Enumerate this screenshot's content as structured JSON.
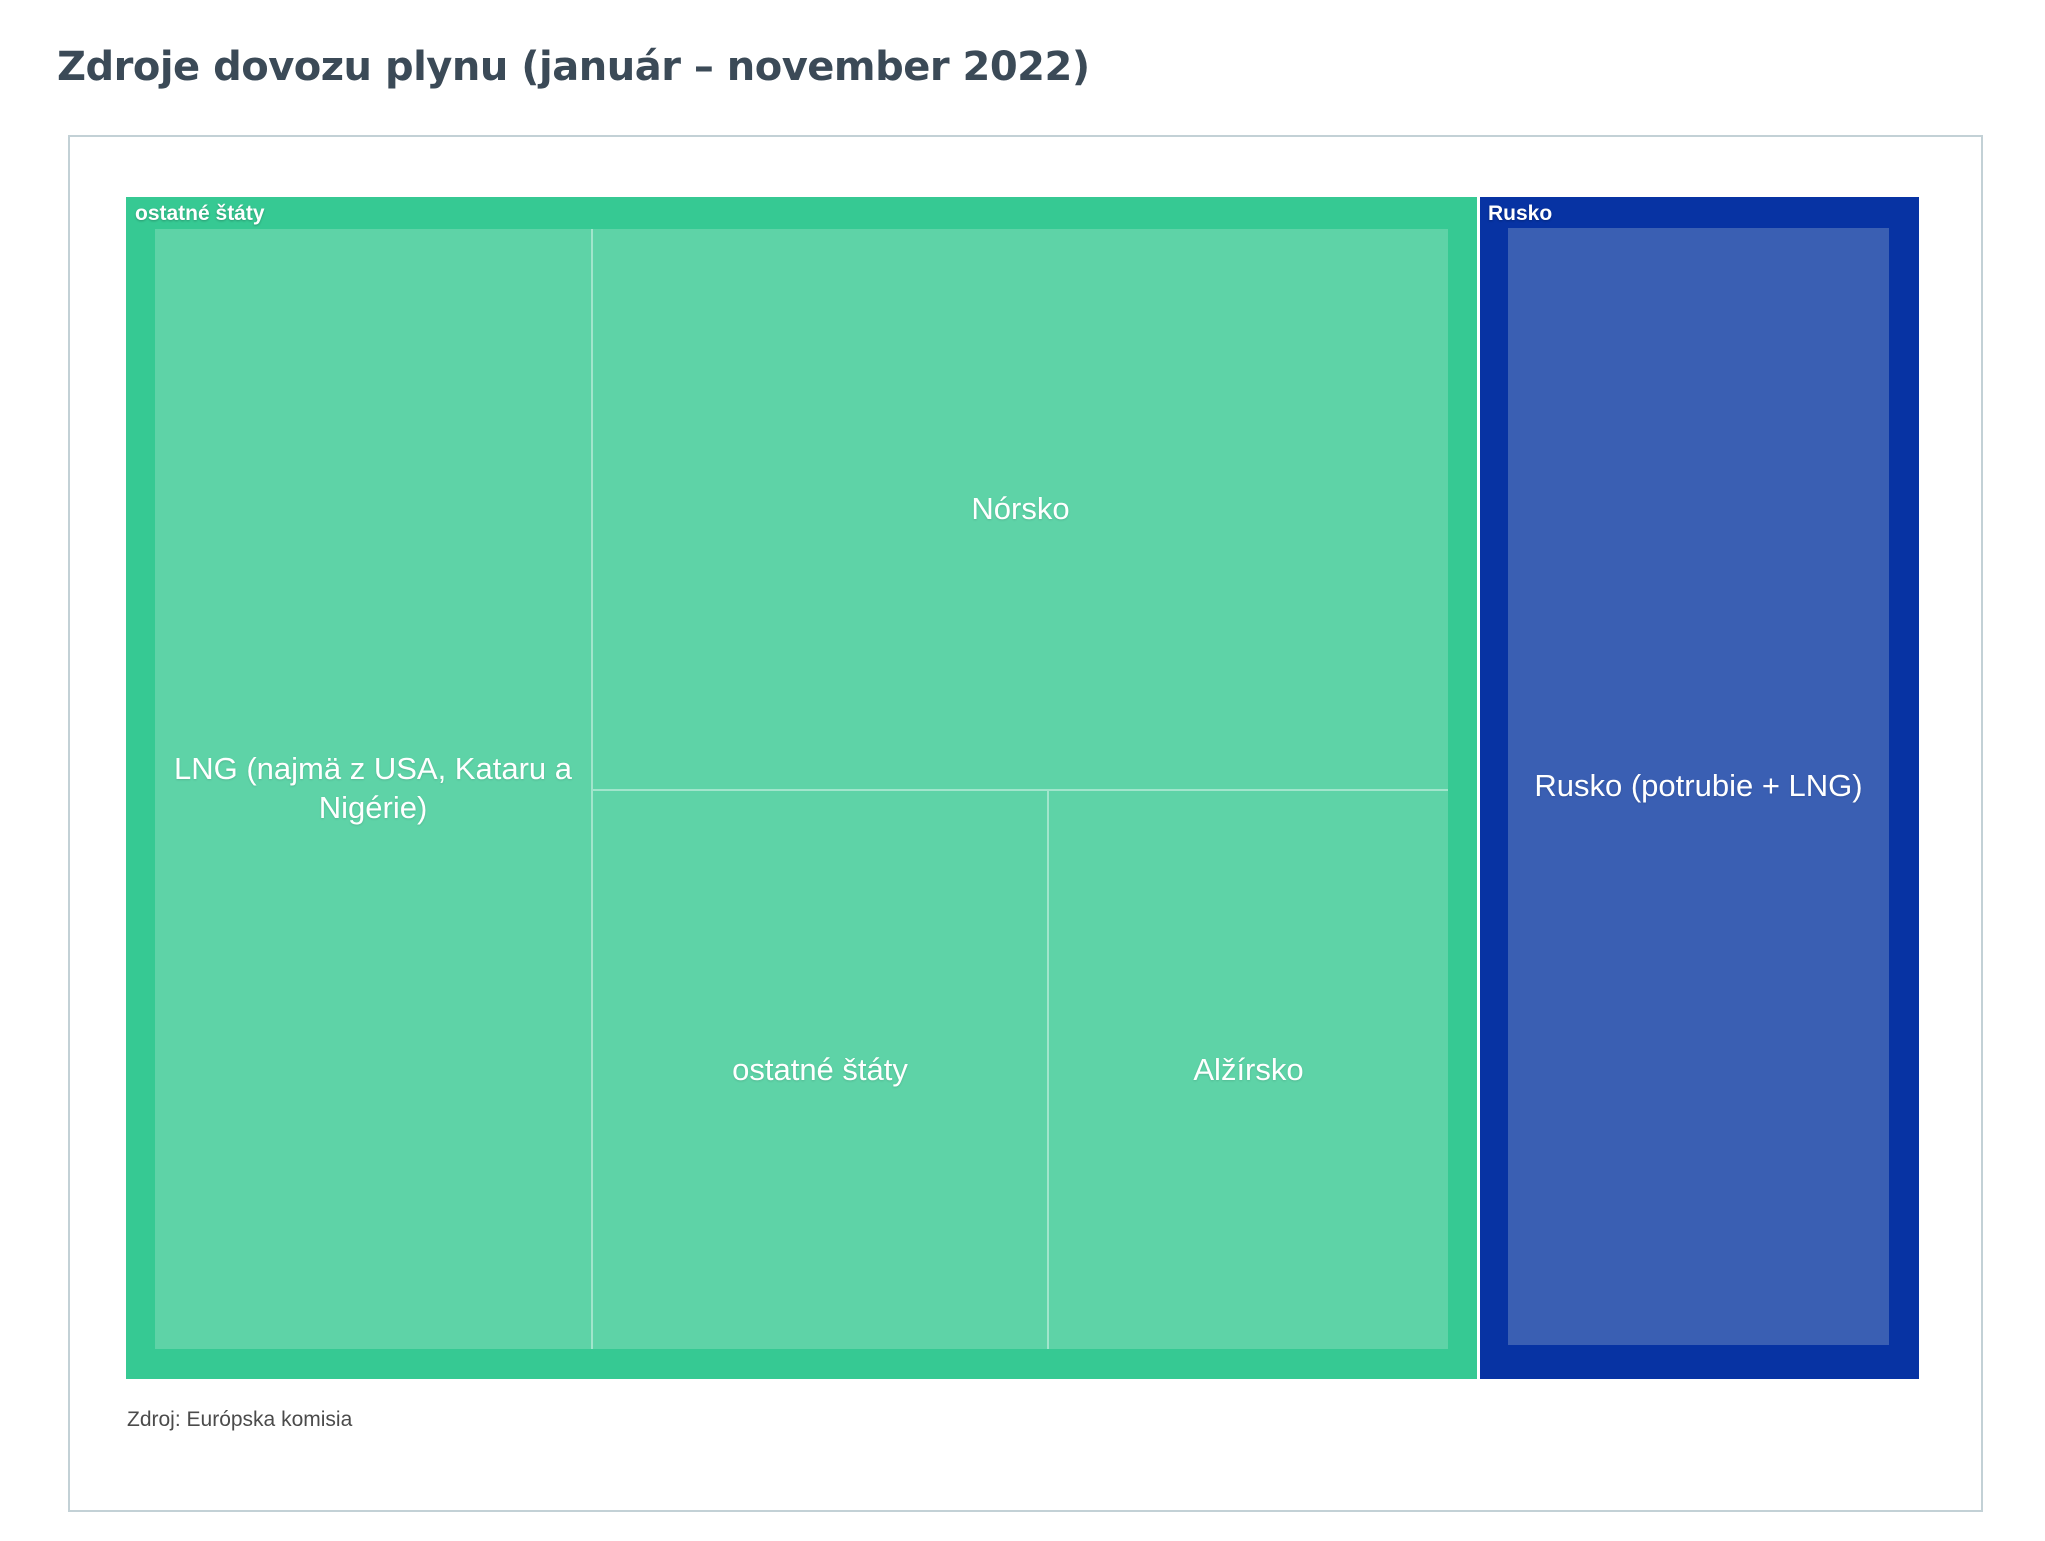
{
  "page": {
    "title": "Zdroje dovozu plynu (január – november 2022)",
    "source_note": "Zdroj: Európska komisia"
  },
  "chart_data": {
    "type": "treemap",
    "title": "Zdroje dovozu plynu (január – november 2022)",
    "source_note": "Zdroj: Európska komisia",
    "legend_position": "none",
    "unit": "percent_of_total_area_estimated",
    "groups": [
      {
        "name": "ostatné štáty",
        "group_color": "#36c993",
        "tile_color": "#5ed3a7",
        "share_pct_est": 75.5,
        "children": [
          {
            "label": "LNG (najmä z USA, Kataru a Nigérie)",
            "share_pct_est": 25.4
          },
          {
            "label": "Nórsko",
            "share_pct_est": 25.0
          },
          {
            "label": "ostatné štáty",
            "share_pct_est": 13.3
          },
          {
            "label": "Alžírsko",
            "share_pct_est": 11.8
          }
        ]
      },
      {
        "name": "Rusko",
        "group_color": "#0733a3",
        "tile_color": "#3a5fb3",
        "share_pct_est": 24.5,
        "children": [
          {
            "label": "Rusko (potrubie + LNG)",
            "share_pct_est": 24.5
          }
        ]
      }
    ]
  }
}
